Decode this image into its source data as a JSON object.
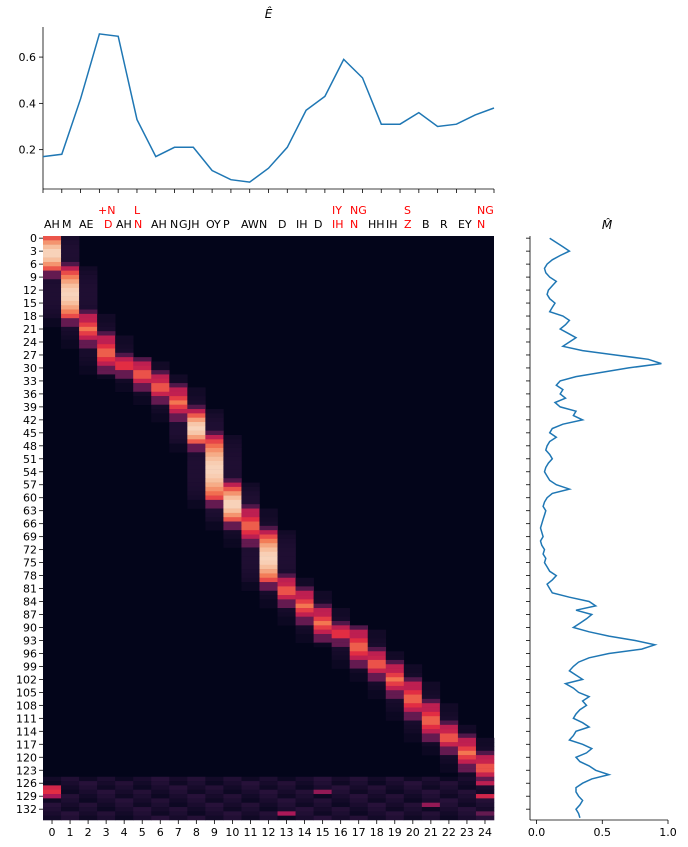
{
  "chart_data": [
    {
      "type": "line",
      "title": "Ê",
      "xlim": [
        0,
        24
      ],
      "ylim": [
        0.03,
        0.73
      ],
      "y_ticks": [
        0.2,
        0.4,
        0.6
      ],
      "x": [
        0,
        1,
        2,
        3,
        4,
        5,
        6,
        7,
        8,
        9,
        10,
        11,
        12,
        13,
        14,
        15,
        16,
        17,
        18,
        19,
        20,
        21,
        22,
        23,
        24
      ],
      "series": [
        {
          "values": [
            0.17,
            0.18,
            0.42,
            0.7,
            0.69,
            0.33,
            0.17,
            0.21,
            0.21,
            0.11,
            0.07,
            0.06,
            0.12,
            0.21,
            0.37,
            0.43,
            0.59,
            0.51,
            0.31,
            0.31,
            0.36,
            0.3,
            0.31,
            0.35,
            0.38
          ]
        }
      ],
      "color": "#1f77b4"
    },
    {
      "type": "heatmap",
      "x_tick_labels": [
        "0",
        "1",
        "2",
        "3",
        "4",
        "5",
        "6",
        "7",
        "8",
        "9",
        "10",
        "11",
        "12",
        "13",
        "14",
        "15",
        "16",
        "17",
        "18",
        "19",
        "20",
        "21",
        "22",
        "23",
        "24"
      ],
      "y_tick_labels": [
        "0",
        "3",
        "6",
        "9",
        "12",
        "15",
        "18",
        "21",
        "24",
        "27",
        "30",
        "33",
        "36",
        "39",
        "42",
        "45",
        "48",
        "51",
        "54",
        "57",
        "60",
        "63",
        "66",
        "69",
        "72",
        "75",
        "78",
        "81",
        "84",
        "87",
        "90",
        "93",
        "96",
        "99",
        "102",
        "105",
        "108",
        "111",
        "114",
        "117",
        "120",
        "123",
        "126",
        "129",
        "132"
      ],
      "rows": 135,
      "cols": 25,
      "phone_labels_bottom": [
        "AH",
        "M",
        "AE",
        "D",
        "AH",
        "N",
        "AH",
        "N",
        "G",
        "JH",
        "OY",
        "P",
        "AW",
        "N",
        "D",
        "IH",
        "D",
        "IH",
        "N",
        "HH",
        "IH",
        "Z",
        "B",
        "R",
        "EY",
        "N"
      ],
      "phone_labels_top_red": [
        "+N",
        "L",
        "IY",
        "NG",
        "S",
        "NG"
      ],
      "alignment_path": [
        {
          "col": 0,
          "row_start": 0,
          "row_end": 8
        },
        {
          "col": 1,
          "row_start": 8,
          "row_end": 19
        },
        {
          "col": 2,
          "row_start": 19,
          "row_end": 24
        },
        {
          "col": 3,
          "row_start": 24,
          "row_end": 30
        },
        {
          "col": 4,
          "row_start": 29,
          "row_end": 31
        },
        {
          "col": 5,
          "row_start": 30,
          "row_end": 34
        },
        {
          "col": 6,
          "row_start": 33,
          "row_end": 37
        },
        {
          "col": 7,
          "row_start": 36,
          "row_end": 41
        },
        {
          "col": 8,
          "row_start": 41,
          "row_end": 48
        },
        {
          "col": 9,
          "row_start": 47,
          "row_end": 61
        },
        {
          "col": 10,
          "row_start": 58,
          "row_end": 66
        },
        {
          "col": 11,
          "row_start": 64,
          "row_end": 70
        },
        {
          "col": 12,
          "row_start": 69,
          "row_end": 80
        },
        {
          "col": 13,
          "row_start": 80,
          "row_end": 84
        },
        {
          "col": 14,
          "row_start": 83,
          "row_end": 88
        },
        {
          "col": 15,
          "row_start": 87,
          "row_end": 92
        },
        {
          "col": 16,
          "row_start": 91,
          "row_end": 93
        },
        {
          "col": 17,
          "row_start": 92,
          "row_end": 98
        },
        {
          "col": 18,
          "row_start": 97,
          "row_end": 101
        },
        {
          "col": 19,
          "row_start": 100,
          "row_end": 105
        },
        {
          "col": 20,
          "row_start": 104,
          "row_end": 110
        },
        {
          "col": 21,
          "row_start": 109,
          "row_end": 115
        },
        {
          "col": 22,
          "row_start": 114,
          "row_end": 118
        },
        {
          "col": 23,
          "row_start": 117,
          "row_end": 122
        },
        {
          "col": 24,
          "row_start": 121,
          "row_end": 125
        }
      ],
      "colormap": "rocket"
    },
    {
      "type": "line",
      "title": "M̂",
      "orientation": "vertical",
      "xlim": [
        -0.05,
        1.0
      ],
      "x_ticks": [
        0.0,
        0.5,
        1.0
      ],
      "x_tick_labels": [
        "0.0",
        "0.5",
        "1.0"
      ],
      "rows": 135,
      "values": [
        0.1,
        0.15,
        0.2,
        0.25,
        0.18,
        0.12,
        0.08,
        0.06,
        0.07,
        0.1,
        0.15,
        0.12,
        0.09,
        0.08,
        0.1,
        0.14,
        0.12,
        0.1,
        0.2,
        0.25,
        0.22,
        0.18,
        0.24,
        0.3,
        0.25,
        0.2,
        0.35,
        0.6,
        0.85,
        0.95,
        0.7,
        0.5,
        0.3,
        0.18,
        0.15,
        0.2,
        0.18,
        0.22,
        0.14,
        0.18,
        0.3,
        0.28,
        0.35,
        0.2,
        0.12,
        0.1,
        0.15,
        0.1,
        0.08,
        0.07,
        0.1,
        0.12,
        0.09,
        0.07,
        0.06,
        0.08,
        0.1,
        0.15,
        0.25,
        0.12,
        0.08,
        0.06,
        0.05,
        0.07,
        0.06,
        0.05,
        0.04,
        0.03,
        0.04,
        0.05,
        0.03,
        0.04,
        0.06,
        0.05,
        0.07,
        0.06,
        0.08,
        0.1,
        0.15,
        0.12,
        0.08,
        0.1,
        0.12,
        0.25,
        0.4,
        0.45,
        0.3,
        0.42,
        0.38,
        0.33,
        0.28,
        0.4,
        0.55,
        0.75,
        0.9,
        0.8,
        0.55,
        0.4,
        0.32,
        0.28,
        0.25,
        0.3,
        0.35,
        0.22,
        0.28,
        0.32,
        0.4,
        0.35,
        0.38,
        0.33,
        0.3,
        0.28,
        0.35,
        0.4,
        0.3,
        0.28,
        0.25,
        0.35,
        0.42,
        0.38,
        0.3,
        0.33,
        0.4,
        0.45,
        0.55,
        0.42,
        0.35,
        0.3,
        0.3,
        0.32,
        0.35,
        0.33,
        0.3,
        0.32,
        0.33
      ],
      "color": "#1f77b4"
    }
  ]
}
